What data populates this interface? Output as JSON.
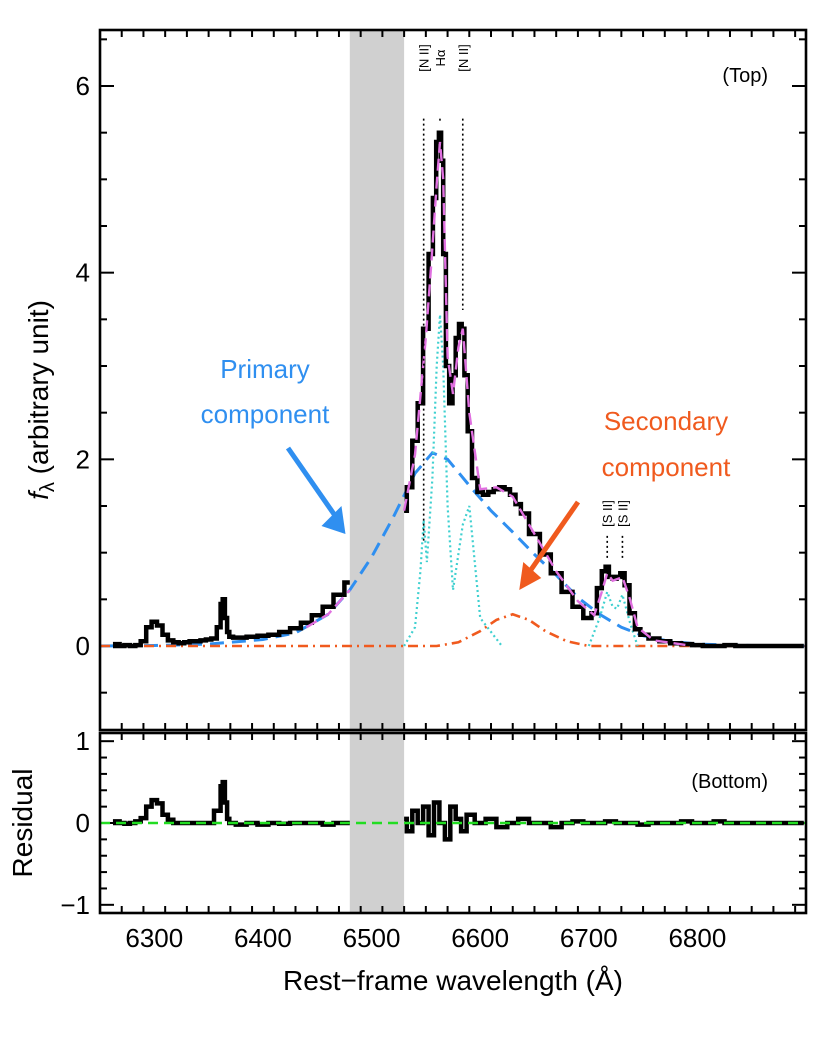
{
  "colors": {
    "data": "#000000",
    "primary": "#2f8ff0",
    "secondary": "#f05a1e",
    "narrow_lines": "#3fd0d0",
    "total_fit": "#e070e0",
    "zero_line_residual": "#22dd22",
    "masked_region": "#d0d0d0"
  },
  "chart_data": [
    {
      "panel": "top",
      "type": "line",
      "tag": "(Top)",
      "ylabel": "f",
      "ylabel_sub": "λ",
      "ylabel_rest": " (arbitrary unit)",
      "xlim": [
        6250,
        6900
      ],
      "ylim": [
        -0.9,
        6.6
      ],
      "xticks": [
        6300,
        6400,
        6500,
        6600,
        6700,
        6800
      ],
      "yticks": [
        0,
        2,
        4,
        6
      ],
      "yticks_minor_step": 0.5,
      "masked_region": [
        6480,
        6530
      ],
      "line_markers": [
        {
          "label": "[N II]",
          "x": 6548
        },
        {
          "label": "Hα",
          "x": 6563
        },
        {
          "label": "[N II]",
          "x": 6584
        },
        {
          "label": "[S II]",
          "x": 6717
        },
        {
          "label": "[S II]",
          "x": 6731
        }
      ],
      "annotations": [
        {
          "lines": [
            "Primary",
            "component"
          ],
          "color": "primary",
          "arrow_to": [
            6476,
            1.2
          ]
        },
        {
          "lines": [
            "Secondary",
            "component"
          ],
          "color": "secondary",
          "arrow_to": [
            6636,
            0.6
          ]
        }
      ],
      "series": {
        "data": {
          "x": [
            6262,
            6266,
            6270,
            6275,
            6280,
            6285,
            6290,
            6295,
            6300,
            6305,
            6310,
            6315,
            6320,
            6325,
            6330,
            6335,
            6340,
            6345,
            6350,
            6355,
            6360,
            6362,
            6364,
            6366,
            6368,
            6370,
            6375,
            6380,
            6390,
            6400,
            6410,
            6420,
            6430,
            6440,
            6450,
            6460,
            6470,
            6480,
            6530,
            6535,
            6540,
            6545,
            6550,
            6555,
            6558,
            6561,
            6563,
            6565,
            6567,
            6570,
            6573,
            6576,
            6579,
            6582,
            6584,
            6587,
            6590,
            6595,
            6600,
            6605,
            6610,
            6615,
            6620,
            6625,
            6630,
            6635,
            6640,
            6650,
            6660,
            6670,
            6680,
            6690,
            6700,
            6705,
            6710,
            6714,
            6717,
            6720,
            6724,
            6727,
            6731,
            6735,
            6740,
            6745,
            6750,
            6760,
            6770,
            6780,
            6790,
            6800,
            6810,
            6820,
            6830,
            6840,
            6850,
            6860,
            6870,
            6880,
            6890,
            6898
          ],
          "y": [
            0.0,
            0.02,
            0.0,
            0.01,
            0.0,
            0.01,
            0.05,
            0.2,
            0.26,
            0.22,
            0.12,
            0.06,
            0.04,
            0.03,
            0.04,
            0.05,
            0.05,
            0.06,
            0.07,
            0.08,
            0.2,
            0.45,
            0.5,
            0.3,
            0.15,
            0.1,
            0.09,
            0.09,
            0.1,
            0.11,
            0.12,
            0.15,
            0.19,
            0.25,
            0.33,
            0.42,
            0.55,
            0.68,
            1.45,
            1.7,
            2.2,
            2.6,
            3.4,
            4.2,
            4.8,
            5.4,
            5.5,
            5.2,
            4.2,
            3.0,
            2.6,
            2.9,
            3.3,
            3.45,
            3.4,
            2.9,
            2.3,
            1.8,
            1.65,
            1.62,
            1.65,
            1.68,
            1.7,
            1.68,
            1.62,
            1.52,
            1.42,
            1.2,
            0.98,
            0.78,
            0.58,
            0.42,
            0.3,
            0.35,
            0.62,
            0.8,
            0.85,
            0.74,
            0.72,
            0.74,
            0.78,
            0.65,
            0.35,
            0.18,
            0.12,
            0.08,
            0.05,
            0.03,
            0.02,
            0.01,
            0.0,
            0.0,
            0.01,
            0.0,
            0.0,
            0.0,
            0.0,
            0.0,
            0.0,
            0.0
          ]
        },
        "primary": {
          "x": [
            6250,
            6300,
            6350,
            6400,
            6430,
            6460,
            6480,
            6500,
            6520,
            6540,
            6556,
            6570,
            6590,
            6610,
            6630,
            6650,
            6670,
            6690,
            6710,
            6730,
            6750,
            6770,
            6800,
            6850,
            6900
          ],
          "y": [
            0.0,
            0.005,
            0.02,
            0.07,
            0.14,
            0.34,
            0.6,
            0.95,
            1.38,
            1.85,
            2.07,
            2.0,
            1.72,
            1.45,
            1.22,
            0.98,
            0.76,
            0.52,
            0.34,
            0.2,
            0.11,
            0.06,
            0.02,
            0.005,
            0.0
          ]
        },
        "secondary": {
          "x": [
            6250,
            6560,
            6580,
            6600,
            6615,
            6630,
            6645,
            6660,
            6680,
            6700,
            6900
          ],
          "y": [
            0.0,
            0.0,
            0.04,
            0.16,
            0.28,
            0.34,
            0.28,
            0.16,
            0.05,
            0.0,
            0.0
          ]
        },
        "narrow_lines": [
          {
            "x": [
              6530,
              6540,
              6545,
              6548,
              6551,
              6556,
              6560,
              6563,
              6566,
              6570,
              6575,
              6584,
              6590,
              6600,
              6620
            ],
            "y": [
              0.0,
              0.2,
              0.8,
              1.35,
              0.9,
              1.8,
              3.0,
              3.55,
              3.0,
              1.5,
              0.6,
              1.3,
              1.5,
              0.3,
              0.0
            ]
          },
          {
            "x": [
              6700,
              6710,
              6717,
              6722,
              6726,
              6731,
              6738,
              6745
            ],
            "y": [
              0.0,
              0.3,
              0.58,
              0.42,
              0.4,
              0.55,
              0.25,
              0.0
            ]
          }
        ],
        "total_fit": {
          "x": [
            6440,
            6460,
            6480,
            6530,
            6540,
            6550,
            6555,
            6560,
            6563,
            6566,
            6570,
            6575,
            6580,
            6584,
            6590,
            6600,
            6615,
            6630,
            6650,
            6670,
            6690,
            6705,
            6712,
            6717,
            6722,
            6727,
            6731,
            6738,
            6745,
            6760,
            6790
          ],
          "y": [
            0.2,
            0.34,
            0.6,
            1.45,
            2.05,
            3.3,
            4.1,
            4.95,
            5.4,
            5.0,
            3.1,
            2.7,
            3.2,
            3.4,
            2.5,
            1.68,
            1.7,
            1.6,
            1.2,
            0.8,
            0.48,
            0.33,
            0.58,
            0.78,
            0.7,
            0.72,
            0.74,
            0.5,
            0.2,
            0.06,
            0.01
          ]
        }
      }
    },
    {
      "panel": "bottom",
      "type": "line",
      "tag": "(Bottom)",
      "ylabel": "Residual",
      "xlabel": "Rest−frame wavelength (Å)",
      "xlim": [
        6250,
        6900
      ],
      "ylim": [
        -1.1,
        1.1
      ],
      "xticks": [
        6300,
        6400,
        6500,
        6600,
        6700,
        6800
      ],
      "yticks": [
        -1,
        0,
        1
      ],
      "yticks_minor_step": 0.2,
      "masked_region": [
        6480,
        6530
      ],
      "series": {
        "data": {
          "x": [
            6262,
            6266,
            6270,
            6275,
            6280,
            6285,
            6290,
            6295,
            6300,
            6305,
            6310,
            6315,
            6320,
            6330,
            6340,
            6350,
            6360,
            6362,
            6364,
            6366,
            6368,
            6370,
            6380,
            6390,
            6400,
            6410,
            6420,
            6430,
            6440,
            6450,
            6460,
            6470,
            6475,
            6480,
            6530,
            6535,
            6540,
            6545,
            6550,
            6555,
            6560,
            6565,
            6570,
            6575,
            6580,
            6585,
            6590,
            6600,
            6610,
            6620,
            6630,
            6640,
            6650,
            6660,
            6670,
            6680,
            6690,
            6700,
            6710,
            6720,
            6730,
            6740,
            6750,
            6760,
            6770,
            6780,
            6790,
            6800,
            6810,
            6820,
            6830,
            6840,
            6850,
            6860,
            6870,
            6880,
            6890,
            6898
          ],
          "y": [
            0.0,
            0.02,
            0.0,
            -0.01,
            0.0,
            0.02,
            0.06,
            0.2,
            0.28,
            0.24,
            0.1,
            0.04,
            0.0,
            0.0,
            0.0,
            0.0,
            0.15,
            0.45,
            0.5,
            0.25,
            0.05,
            0.0,
            -0.02,
            0.0,
            -0.02,
            0.0,
            -0.01,
            0.0,
            0.0,
            0.0,
            -0.02,
            0.0,
            0.0,
            0.0,
            0.05,
            -0.1,
            0.15,
            0.0,
            0.2,
            -0.15,
            0.25,
            0.0,
            -0.2,
            0.2,
            0.05,
            -0.1,
            0.1,
            0.0,
            0.05,
            -0.05,
            0.0,
            0.05,
            0.0,
            0.0,
            -0.05,
            0.0,
            0.02,
            0.0,
            0.0,
            0.02,
            0.0,
            0.0,
            -0.02,
            0.0,
            0.0,
            0.0,
            0.02,
            0.0,
            0.0,
            0.02,
            0.0,
            0.0,
            0.0,
            0.0,
            0.0,
            0.0,
            0.0,
            0.0
          ]
        },
        "zero_line": {
          "x": [
            6250,
            6900
          ],
          "y": [
            0.0,
            0.0
          ]
        }
      }
    }
  ]
}
